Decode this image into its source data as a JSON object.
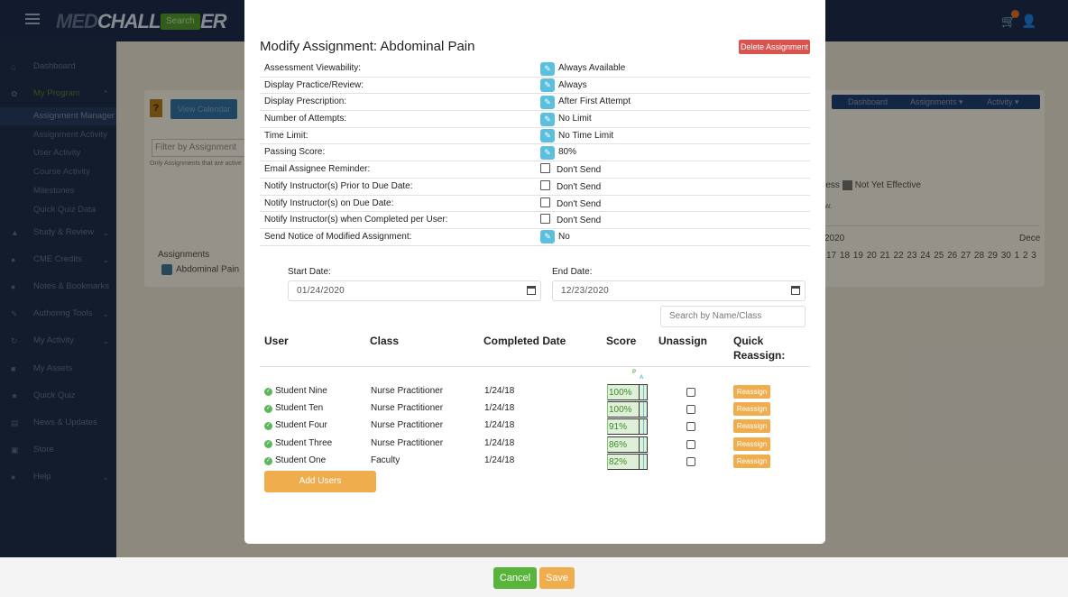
{
  "app": {
    "logo_main": "CHALLENGER",
    "logo_prefix": "MED",
    "search_label": "Search"
  },
  "sidebar": {
    "items": [
      {
        "label": "Dashboard",
        "icon": "home-icon"
      },
      {
        "label": "My Program",
        "icon": "leaf-icon"
      },
      {
        "label": "Assignment Manager"
      },
      {
        "label": "Assignment Activity"
      },
      {
        "label": "User Activity"
      },
      {
        "label": "Course Activity"
      },
      {
        "label": "Milestones"
      },
      {
        "label": "Quick Quiz Data"
      },
      {
        "label": "Study & Review",
        "icon": "graduation-cap-icon"
      },
      {
        "label": "CME Credits",
        "icon": "person-icon"
      },
      {
        "label": "Notes & Bookmarks",
        "icon": "pin-icon"
      },
      {
        "label": "Authoring Tools",
        "icon": "edit-icon"
      },
      {
        "label": "My Activity",
        "icon": "history-icon"
      },
      {
        "label": "My Assets",
        "icon": "folder-icon"
      },
      {
        "label": "Quick Quiz",
        "icon": "trophy-icon"
      },
      {
        "label": "News & Updates",
        "icon": "news-icon"
      },
      {
        "label": "Store",
        "icon": "cart-icon"
      },
      {
        "label": "Help",
        "icon": "help-icon"
      }
    ]
  },
  "background": {
    "view_calendar": "View Calendar",
    "nav": {
      "dashboard": "Dashboard",
      "assignments": "Assignments ▾",
      "activity": "Activity ▾"
    },
    "filter_placeholder": "Filter by Assignment",
    "small_note": "Only Assignments that are active",
    "assignments_header": "Assignments",
    "assignment_name": "Abdominal Pain",
    "legend_partial": "ress",
    "legend_not_effective": "Not Yet Effective",
    "w_text": "w.",
    "year": "2020",
    "month": "Dece",
    "days": "17 18 19 20 21 22 23 24 25 26 27 28 29 30  1  2  3"
  },
  "modal": {
    "title": "Modify Assignment: Abdominal Pain",
    "delete_label": "Delete Assignment",
    "settings": [
      {
        "label": "Assessment Viewability:",
        "value": "Always Available",
        "control": "edit"
      },
      {
        "label": "Display Practice/Review:",
        "value": "Always",
        "control": "edit"
      },
      {
        "label": "Display Prescription:",
        "value": "After First Attempt",
        "control": "edit"
      },
      {
        "label": "Number of Attempts:",
        "value": "No Limit",
        "control": "edit"
      },
      {
        "label": "Time Limit:",
        "value": "No Time Limit",
        "control": "edit"
      },
      {
        "label": "Passing Score:",
        "value": "80%",
        "control": "edit"
      },
      {
        "label": "Email Assignee Reminder:",
        "value": "Don't Send",
        "control": "checkbox"
      },
      {
        "label": "Notify Instructor(s) Prior to Due Date:",
        "value": "Don't Send",
        "control": "checkbox"
      },
      {
        "label": "Notify Instructor(s) on Due Date:",
        "value": "Don't Send",
        "control": "checkbox"
      },
      {
        "label": "Notify Instructor(s) when Completed per User:",
        "value": "Don't Send",
        "control": "checkbox"
      },
      {
        "label": "Send Notice of Modified Assignment:",
        "value": "No",
        "control": "edit"
      }
    ],
    "start_label": "Start Date:",
    "start_value": "01/24/2020",
    "end_label": "End Date:",
    "end_value": "12/23/2020",
    "search_placeholder": "Search by Name/Class",
    "columns": {
      "user": "User",
      "class": "Class",
      "completed": "Completed Date",
      "score": "Score",
      "unassign": "Unassign",
      "quick1": "Quick",
      "quick2": "Reassign:"
    },
    "score_markers": {
      "pass": "P",
      "a": "A"
    },
    "rows": [
      {
        "user": "Student Nine",
        "class": "Nurse Practitioner",
        "date": "1/24/18",
        "score": "100%",
        "reassign": "Reassign"
      },
      {
        "user": "Student Ten",
        "class": "Nurse Practitioner",
        "date": "1/24/18",
        "score": "100%",
        "reassign": "Reassign"
      },
      {
        "user": "Student Four",
        "class": "Nurse Practitioner",
        "date": "1/24/18",
        "score": "91%",
        "reassign": "Reassign"
      },
      {
        "user": "Student Three",
        "class": "Nurse Practitioner",
        "date": "1/24/18",
        "score": "86%",
        "reassign": "Reassign"
      },
      {
        "user": "Student One",
        "class": "Faculty",
        "date": "1/24/18",
        "score": "82%",
        "reassign": "Reassign"
      }
    ],
    "add_users_label": "Add Users"
  },
  "footer": {
    "cancel": "Cancel",
    "save": "Save"
  },
  "colors": {
    "edit": "#5bc0de",
    "delete": "#d9534f",
    "orange": "#f0ad4e",
    "green": "#5cb85c"
  }
}
